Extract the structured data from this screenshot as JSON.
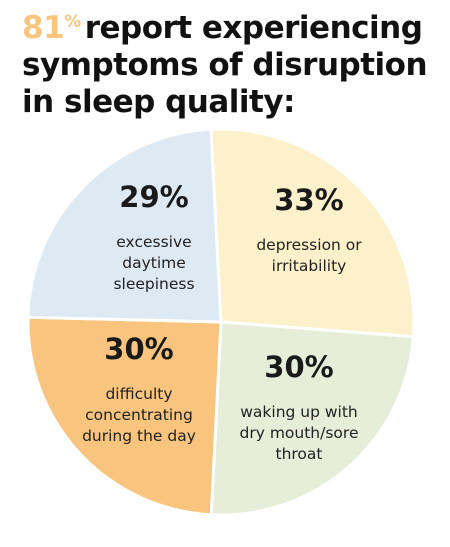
{
  "title": {
    "highlight": "81",
    "highlight_sign": "%",
    "text": "report experiencing symptoms of disruption in sleep quality:"
  },
  "colors": {
    "highlight": "#f9c57e",
    "outline": "#ffffff"
  },
  "chart_data": {
    "type": "pie",
    "title": "81% report experiencing symptoms of disruption in sleep quality:",
    "slices": [
      {
        "value_label": "33%",
        "value": 33,
        "label": [
          "depression or",
          "irritability"
        ],
        "color": "#fdf1cc"
      },
      {
        "value_label": "30%",
        "value": 30,
        "label": [
          "waking up with",
          "dry mouth/sore",
          "throat"
        ],
        "color": "#e6eed9"
      },
      {
        "value_label": "30%",
        "value": 30,
        "label": [
          "difficulty",
          "concentrating",
          "during the day"
        ],
        "color": "#f9c57e"
      },
      {
        "value_label": "29%",
        "value": 29,
        "label": [
          "excessive",
          "daytime",
          "sleepiness"
        ],
        "color": "#dde9f3"
      }
    ]
  }
}
